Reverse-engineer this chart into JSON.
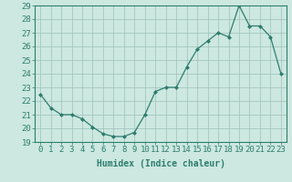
{
  "x": [
    0,
    1,
    2,
    3,
    4,
    5,
    6,
    7,
    8,
    9,
    10,
    11,
    12,
    13,
    14,
    15,
    16,
    17,
    18,
    19,
    20,
    21,
    22,
    23
  ],
  "y": [
    22.5,
    21.5,
    21.0,
    21.0,
    20.7,
    20.1,
    19.6,
    19.4,
    19.4,
    19.7,
    21.0,
    22.7,
    23.0,
    23.0,
    24.5,
    25.8,
    26.4,
    27.0,
    26.7,
    29.0,
    27.5,
    27.5,
    26.7,
    24.0
  ],
  "line_color": "#2e7d6e",
  "marker": "D",
  "marker_size": 2,
  "bg_color": "#cce8e0",
  "grid_color": "#9dbfb8",
  "xlabel": "Humidex (Indice chaleur)",
  "xlim": [
    -0.5,
    23.5
  ],
  "ylim": [
    19,
    29
  ],
  "yticks": [
    19,
    20,
    21,
    22,
    23,
    24,
    25,
    26,
    27,
    28,
    29
  ],
  "xticks": [
    0,
    1,
    2,
    3,
    4,
    5,
    6,
    7,
    8,
    9,
    10,
    11,
    12,
    13,
    14,
    15,
    16,
    17,
    18,
    19,
    20,
    21,
    22,
    23
  ],
  "label_fontsize": 7,
  "tick_fontsize": 6.5
}
